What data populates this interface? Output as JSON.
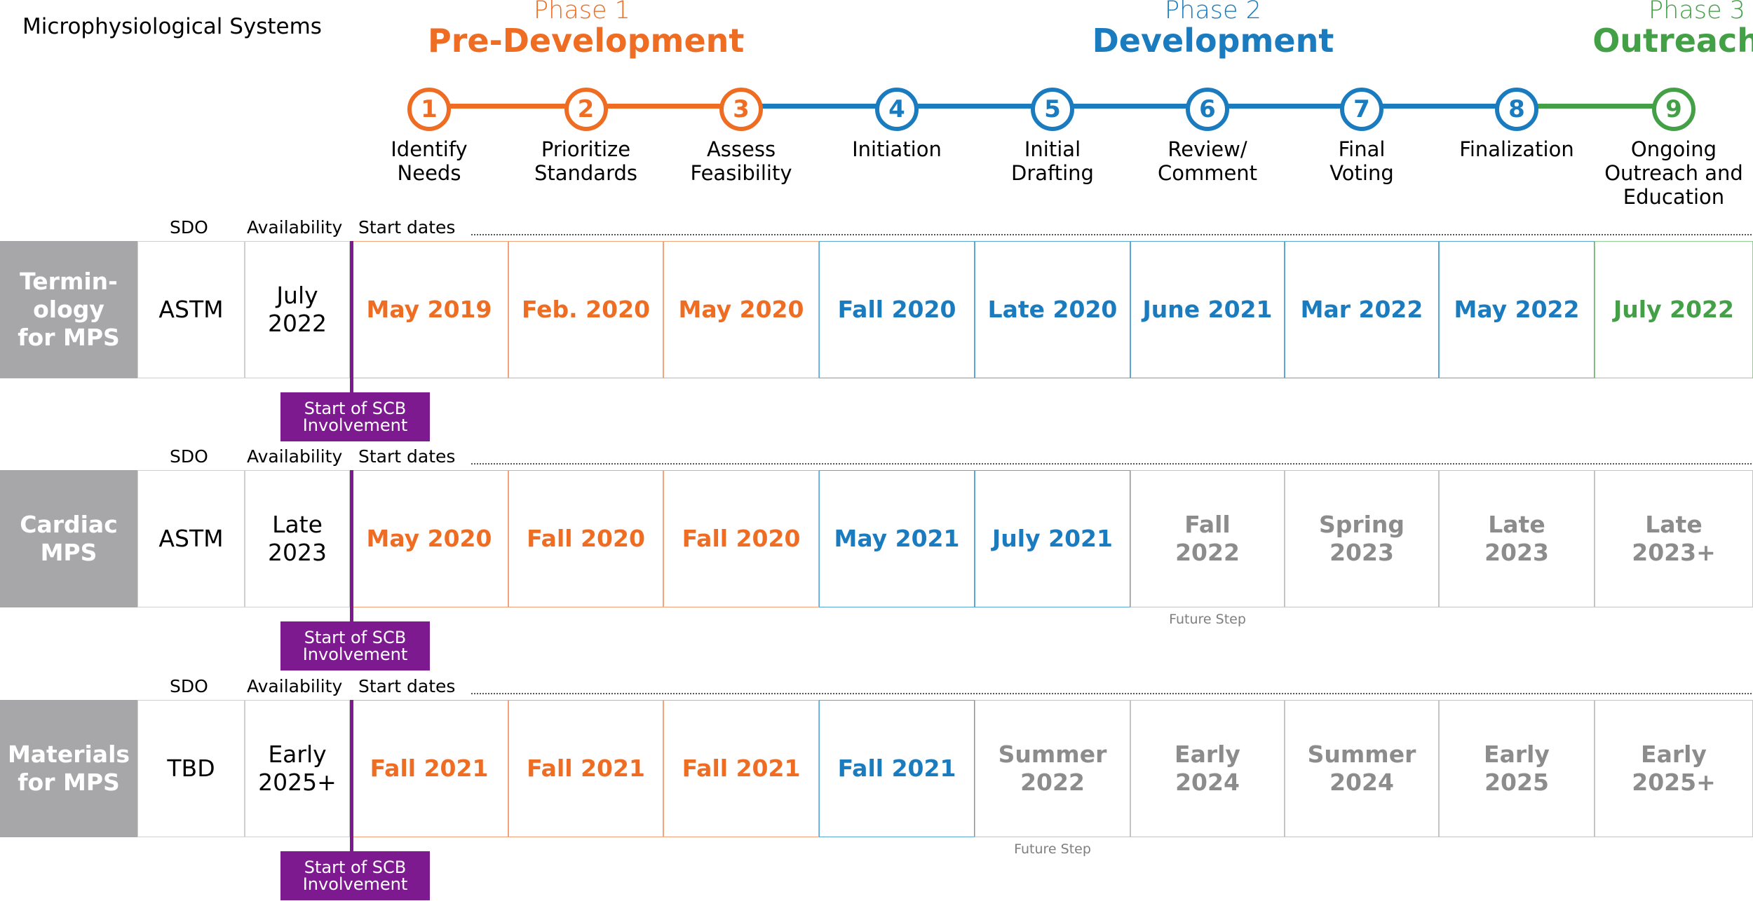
{
  "title": "Microphysiological Systems",
  "phases": [
    {
      "num": "Phase 1",
      "name": "Pre-Development",
      "color": "#ef6c23"
    },
    {
      "num": "Phase 2",
      "name": "Development",
      "color": "#1a7bbf"
    },
    {
      "num": "Phase 3",
      "name": "Outreach",
      "color": "#43a047"
    }
  ],
  "steps": [
    {
      "n": "1",
      "label": "Identify\nNeeds",
      "color": "#ef6c23"
    },
    {
      "n": "2",
      "label": "Prioritize\nStandards",
      "color": "#ef6c23"
    },
    {
      "n": "3",
      "label": "Assess\nFeasibility",
      "color": "#ef6c23"
    },
    {
      "n": "4",
      "label": "Initiation",
      "color": "#1a7bbf"
    },
    {
      "n": "5",
      "label": "Initial\nDrafting",
      "color": "#1a7bbf"
    },
    {
      "n": "6",
      "label": "Review/\nComment",
      "color": "#1a7bbf"
    },
    {
      "n": "7",
      "label": "Final\nVoting",
      "color": "#1a7bbf"
    },
    {
      "n": "8",
      "label": "Finalization",
      "color": "#1a7bbf"
    },
    {
      "n": "9",
      "label": "Ongoing\nOutreach and\nEducation",
      "color": "#43a047"
    }
  ],
  "headers": {
    "sdo": "SDO",
    "availability": "Availability",
    "start_dates": "Start dates"
  },
  "scb_label": "Start of SCB\nInvolvement",
  "future_label": "Future Step",
  "rows": [
    {
      "label": "Termin-\nology\nfor MPS",
      "sdo": "ASTM",
      "availability": "July\n2022",
      "dates": [
        {
          "text": "May 2019",
          "status": "pre"
        },
        {
          "text": "Feb. 2020",
          "status": "pre"
        },
        {
          "text": "May 2020",
          "status": "pre"
        },
        {
          "text": "Fall 2020",
          "status": "dev"
        },
        {
          "text": "Late 2020",
          "status": "dev"
        },
        {
          "text": "June 2021",
          "status": "dev"
        },
        {
          "text": "Mar 2022",
          "status": "dev"
        },
        {
          "text": "May 2022",
          "status": "dev"
        },
        {
          "text": "July 2022",
          "status": "out"
        }
      ],
      "future_note": ""
    },
    {
      "label": "Cardiac\nMPS",
      "sdo": "ASTM",
      "availability": "Late\n2023",
      "dates": [
        {
          "text": "May 2020",
          "status": "pre"
        },
        {
          "text": "Fall 2020",
          "status": "pre"
        },
        {
          "text": "Fall 2020",
          "status": "pre"
        },
        {
          "text": "May 2021",
          "status": "dev"
        },
        {
          "text": "July 2021",
          "status": "dev"
        },
        {
          "text": "Fall\n2022",
          "status": "future"
        },
        {
          "text": "Spring\n2023",
          "status": "future"
        },
        {
          "text": "Late\n2023",
          "status": "future"
        },
        {
          "text": "Late\n2023+",
          "status": "future"
        }
      ],
      "future_note": "Future Step"
    },
    {
      "label": "Materials\nfor MPS",
      "sdo": "TBD",
      "availability": "Early\n2025+",
      "dates": [
        {
          "text": "Fall 2021",
          "status": "pre"
        },
        {
          "text": "Fall 2021",
          "status": "pre"
        },
        {
          "text": "Fall 2021",
          "status": "pre"
        },
        {
          "text": "Fall 2021",
          "status": "dev"
        },
        {
          "text": "Summer\n2022",
          "status": "future"
        },
        {
          "text": "Early\n2024",
          "status": "future"
        },
        {
          "text": "Summer\n2024",
          "status": "future"
        },
        {
          "text": "Early\n2025",
          "status": "future"
        },
        {
          "text": "Early\n2025+",
          "status": "future"
        }
      ],
      "future_note": "Future Step"
    }
  ],
  "status_colors": {
    "pre": "#ef6c23",
    "dev": "#1a7bbf",
    "out": "#43a047",
    "future": "#8c8c8c"
  }
}
